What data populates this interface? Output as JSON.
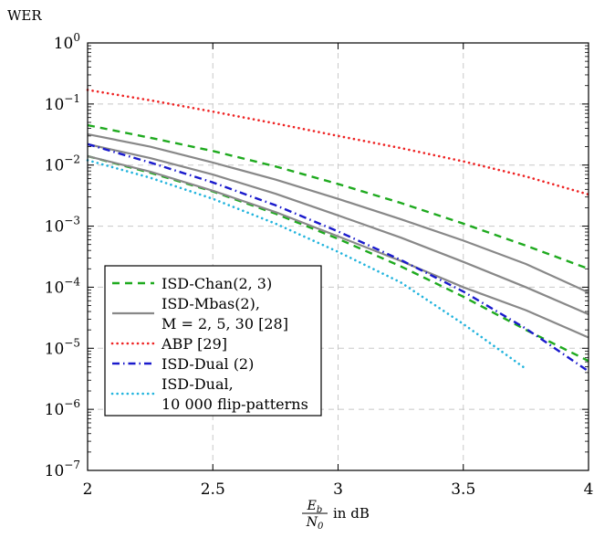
{
  "chart_data": {
    "type": "line",
    "ylabel": "WER",
    "xlabel": {
      "numerator": "E",
      "numerator_sub": "b",
      "denominator": "N",
      "denominator_sub": "0",
      "suffix": "in dB"
    },
    "xlim": [
      2,
      4
    ],
    "ylim_exponents": [
      -7,
      0
    ],
    "y_scale": "log",
    "grid": true,
    "legend_position": "bottom-left",
    "x_ticks": [
      {
        "value": 2,
        "label": "2"
      },
      {
        "value": 2.5,
        "label": "2.5"
      },
      {
        "value": 3,
        "label": "3"
      },
      {
        "value": 3.5,
        "label": "3.5"
      },
      {
        "value": 4,
        "label": "4"
      }
    ],
    "y_ticks": [
      {
        "exp": 0,
        "base": "10",
        "sup": "0"
      },
      {
        "exp": -1,
        "base": "10",
        "sup": "−1"
      },
      {
        "exp": -2,
        "base": "10",
        "sup": "−2"
      },
      {
        "exp": -3,
        "base": "10",
        "sup": "−3"
      },
      {
        "exp": -4,
        "base": "10",
        "sup": "−4"
      },
      {
        "exp": -5,
        "base": "10",
        "sup": "−5"
      },
      {
        "exp": -6,
        "base": "10",
        "sup": "−6"
      },
      {
        "exp": -7,
        "base": "10",
        "sup": "−7"
      }
    ],
    "series": [
      {
        "id": "isd-chan",
        "legend": [
          "ISD-Chan(2, 3)"
        ],
        "color": "#1faa1f",
        "dash": "dashed",
        "lines": [
          {
            "x": [
              2,
              2.25,
              2.5,
              2.75,
              3,
              3.25,
              3.5,
              3.75,
              4
            ],
            "y": [
              0.045,
              0.028,
              0.017,
              0.0095,
              0.0049,
              0.0024,
              0.0011,
              0.00048,
              0.0002
            ]
          },
          {
            "x": [
              2,
              2.25,
              2.5,
              2.75,
              3,
              3.25,
              3.5,
              3.75,
              4
            ],
            "y": [
              0.014,
              0.0075,
              0.0037,
              0.0016,
              0.00062,
              0.00022,
              7e-05,
              2e-05,
              6.2e-06
            ]
          }
        ]
      },
      {
        "id": "isd-mbas",
        "legend": [
          "ISD-Mbas(2),",
          "M = 2, 5, 30 [28]"
        ],
        "color": "#888888",
        "dash": "solid",
        "lines": [
          {
            "x": [
              2,
              2.25,
              2.5,
              2.75,
              3,
              3.25,
              3.5,
              3.75,
              4
            ],
            "y": [
              0.032,
              0.02,
              0.011,
              0.0058,
              0.0028,
              0.0013,
              0.00058,
              0.00024,
              8.2e-05
            ]
          },
          {
            "x": [
              2,
              2.25,
              2.5,
              2.75,
              3,
              3.25,
              3.5,
              3.75,
              4
            ],
            "y": [
              0.022,
              0.013,
              0.007,
              0.0034,
              0.0015,
              0.00065,
              0.00026,
              0.0001,
              3.6e-05
            ]
          },
          {
            "x": [
              2,
              2.25,
              2.5,
              2.75,
              3,
              3.25,
              3.5,
              3.75,
              4
            ],
            "y": [
              0.014,
              0.0078,
              0.0038,
              0.0017,
              0.00068,
              0.00027,
              0.0001,
              4.2e-05,
              1.5e-05
            ]
          }
        ]
      },
      {
        "id": "abp",
        "legend": [
          "ABP [29]"
        ],
        "color": "#ee2222",
        "dash": "dotted",
        "lines": [
          {
            "x": [
              2,
              2.25,
              2.5,
              2.75,
              3,
              3.25,
              3.5,
              3.75,
              4
            ],
            "y": [
              0.17,
              0.115,
              0.075,
              0.048,
              0.03,
              0.019,
              0.0115,
              0.0065,
              0.0033
            ]
          }
        ]
      },
      {
        "id": "isd-dual-2",
        "legend": [
          "ISD-Dual (2)"
        ],
        "color": "#1a1acc",
        "dash": "dashdot",
        "lines": [
          {
            "x": [
              2,
              2.25,
              2.5,
              2.75,
              3,
              3.25,
              3.5,
              3.75,
              4
            ],
            "y": [
              0.022,
              0.011,
              0.0052,
              0.0022,
              0.00082,
              0.00028,
              8.5e-05,
              2.1e-05,
              4.2e-06
            ]
          }
        ]
      },
      {
        "id": "isd-dual-flip",
        "legend": [
          "ISD-Dual,",
          "10 000 flip-patterns"
        ],
        "color": "#22b4dd",
        "dash": "dotted",
        "lines": [
          {
            "x": [
              2,
              2.25,
              2.5,
              2.75,
              3,
              3.25,
              3.5,
              3.75
            ],
            "y": [
              0.012,
              0.0062,
              0.0028,
              0.0011,
              0.00038,
              0.00012,
              2.5e-05,
              4.6e-06
            ]
          }
        ]
      }
    ]
  }
}
